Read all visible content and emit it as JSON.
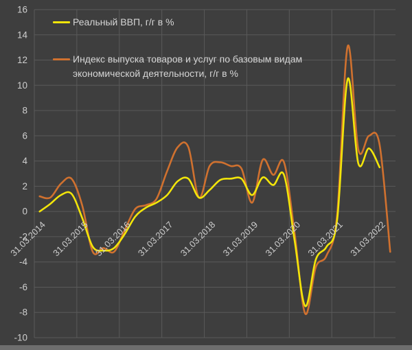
{
  "window": {
    "background": "#3e3e3e",
    "bottom_strip_color": "#6e6e6e"
  },
  "chart_data": {
    "type": "line",
    "smooth": true,
    "title": "",
    "xlabel": "",
    "ylabel": "",
    "grid": true,
    "legend_position": "top-left",
    "background": "#3e3e3e",
    "gridline_color": "#5a5a5a",
    "tick_label_color": "#cfcfcf",
    "ylim": [
      -10,
      16
    ],
    "ytick_step": 2,
    "y_tick_labels": [
      "16",
      "14",
      "12",
      "10",
      "8",
      "6",
      "4",
      "2",
      "0",
      "-2",
      "-4",
      "-6",
      "-8",
      "-10"
    ],
    "categories": [
      "31.03.2014",
      "30.06.2014",
      "30.09.2014",
      "31.12.2014",
      "31.03.2015",
      "30.06.2015",
      "30.09.2015",
      "31.12.2015",
      "31.03.2016",
      "30.06.2016",
      "30.09.2016",
      "31.12.2016",
      "31.03.2017",
      "30.06.2017",
      "30.09.2017",
      "31.12.2017",
      "31.03.2018",
      "30.06.2018",
      "30.09.2018",
      "31.12.2018",
      "31.03.2019",
      "30.06.2019",
      "30.09.2019",
      "31.12.2019",
      "31.03.2020",
      "30.06.2020",
      "30.09.2020",
      "31.12.2020",
      "31.03.2021",
      "30.06.2021",
      "30.09.2021",
      "31.12.2021",
      "31.03.2022",
      "30.06.2022"
    ],
    "x_ticks": [
      {
        "index": 0,
        "label": "31.03.2014"
      },
      {
        "index": 4,
        "label": "31.03.2015"
      },
      {
        "index": 8,
        "label": "31.03.2016"
      },
      {
        "index": 12,
        "label": "31.03.2017"
      },
      {
        "index": 16,
        "label": "31.03.2018"
      },
      {
        "index": 20,
        "label": "31.03.2019"
      },
      {
        "index": 24,
        "label": "31.03.2020"
      },
      {
        "index": 28,
        "label": "31.03.2021"
      },
      {
        "index": 32,
        "label": "31.03.2022"
      }
    ],
    "series": [
      {
        "id": "real-gdp",
        "name": "Реальный ВВП, г/г в %",
        "color": "#f2e50a",
        "values": [
          0.0,
          0.6,
          1.3,
          1.4,
          -0.5,
          -2.8,
          -3.1,
          -2.9,
          -1.8,
          -0.4,
          0.3,
          0.7,
          1.3,
          2.4,
          2.6,
          1.1,
          1.7,
          2.5,
          2.6,
          2.6,
          1.3,
          2.7,
          2.1,
          2.9,
          -2.3,
          -7.5,
          -3.8,
          -2.8,
          -0.7,
          10.5,
          3.8,
          5.0,
          3.5,
          null
        ]
      },
      {
        "id": "base-output-index",
        "name": "Индекс выпуска товаров и услуг по базовым видам экономической деятельности, г/г в %",
        "color": "#d0712f",
        "values": [
          1.2,
          1.1,
          2.2,
          2.6,
          0.5,
          -3.2,
          -2.9,
          -3.2,
          -1.5,
          0.2,
          0.5,
          1.0,
          3.2,
          5.1,
          5.1,
          1.1,
          3.6,
          3.9,
          3.6,
          3.4,
          0.7,
          4.1,
          2.9,
          3.9,
          -1.7,
          -8.1,
          -4.4,
          -3.5,
          -0.3,
          13.1,
          4.9,
          6.0,
          5.3,
          -3.2
        ]
      }
    ]
  }
}
